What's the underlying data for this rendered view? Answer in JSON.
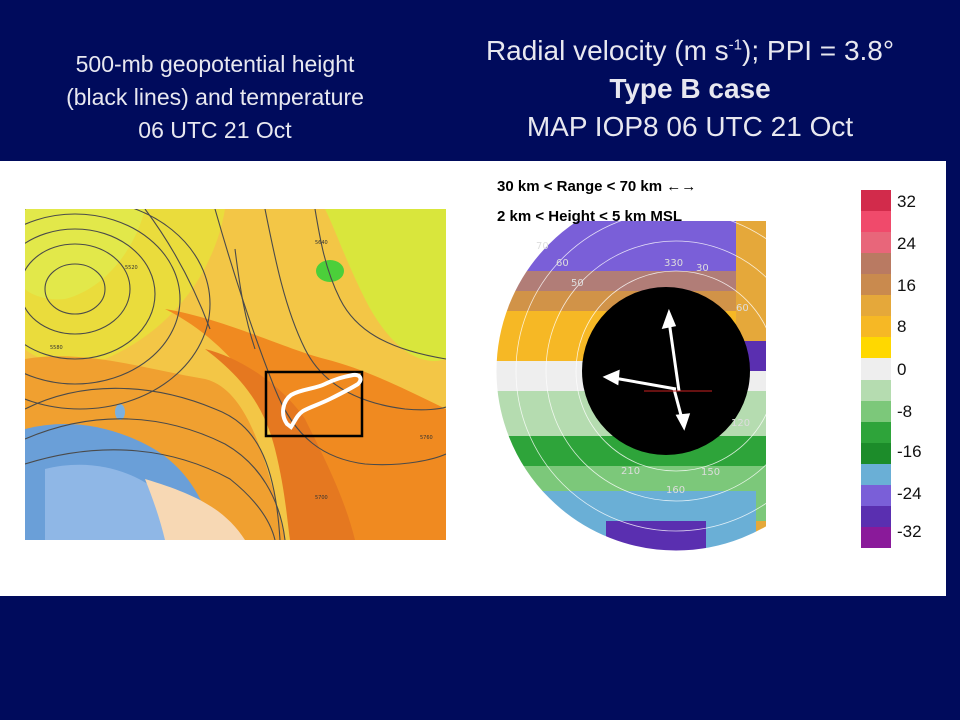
{
  "left_title": {
    "line1": "500-mb geopotential height",
    "line2": "(black lines) and temperature",
    "line3": "06 UTC 21 Oct"
  },
  "right_title": {
    "line1_prefix": "Radial velocity (m s",
    "line1_sup": "-1",
    "line1_suffix": "); PPI = 3.8°",
    "line2": "Type B case",
    "line3": "MAP IOP8 06 UTC 21 Oct"
  },
  "radar_note": {
    "line1": "30 km < Range < 70 km  ←→",
    "line2": "2 km < Height < 5 km MSL"
  },
  "radar_rings": {
    "labels": [
      "70",
      "60",
      "50",
      "330",
      "30",
      "60",
      "120",
      "210",
      "160",
      "150"
    ]
  },
  "colorbar": {
    "labels": [
      "32",
      "24",
      "16",
      "8",
      "0",
      "-8",
      "-16",
      "-24",
      "-32"
    ],
    "colors": [
      "#d22b4b",
      "#f04a6b",
      "#e8667a",
      "#b97a62",
      "#c98a4e",
      "#e5a83a",
      "#f6b825",
      "#ffd800",
      "#eeeeee",
      "#b5dcb0",
      "#7cc87a",
      "#2ea43a",
      "#1c8c2a",
      "#6aafd6",
      "#7a5fd8",
      "#5a2fb0",
      "#8a1a9a"
    ]
  },
  "map_contour_labels": [
    "5520",
    "5640",
    "5760",
    "5580",
    "5700"
  ]
}
